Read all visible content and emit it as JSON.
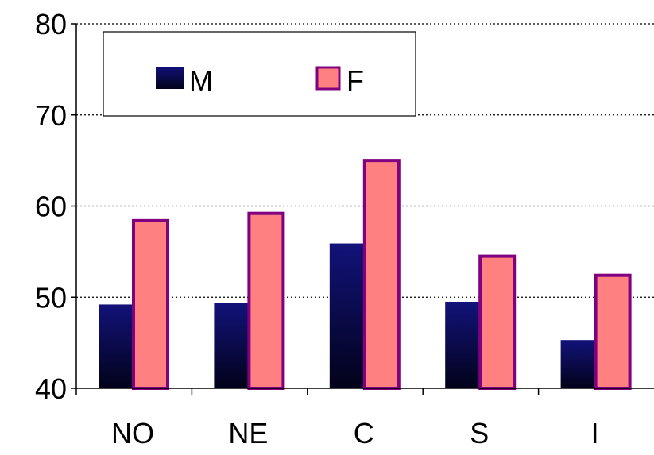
{
  "chart_data": {
    "type": "bar",
    "categories": [
      "NO",
      "NE",
      "C",
      "S",
      "I"
    ],
    "series": [
      {
        "name": "M",
        "values": [
          49.2,
          49.4,
          55.9,
          49.5,
          45.3
        ]
      },
      {
        "name": "F",
        "values": [
          58.4,
          59.2,
          65.0,
          54.5,
          52.4
        ]
      }
    ],
    "ylim": [
      40,
      80
    ],
    "yticks": [
      "40",
      "50",
      "60",
      "70",
      "80"
    ],
    "title": "",
    "xlabel": "",
    "ylabel": "",
    "grid": "horizontal dotted",
    "legend": "top-left"
  },
  "colors": {
    "series_M_top": "#12127a",
    "series_M_bottom": "#02021a",
    "series_F_fill": "#ff8080",
    "series_F_stroke": "#800080",
    "grid": "#000000",
    "axis": "#000000"
  }
}
